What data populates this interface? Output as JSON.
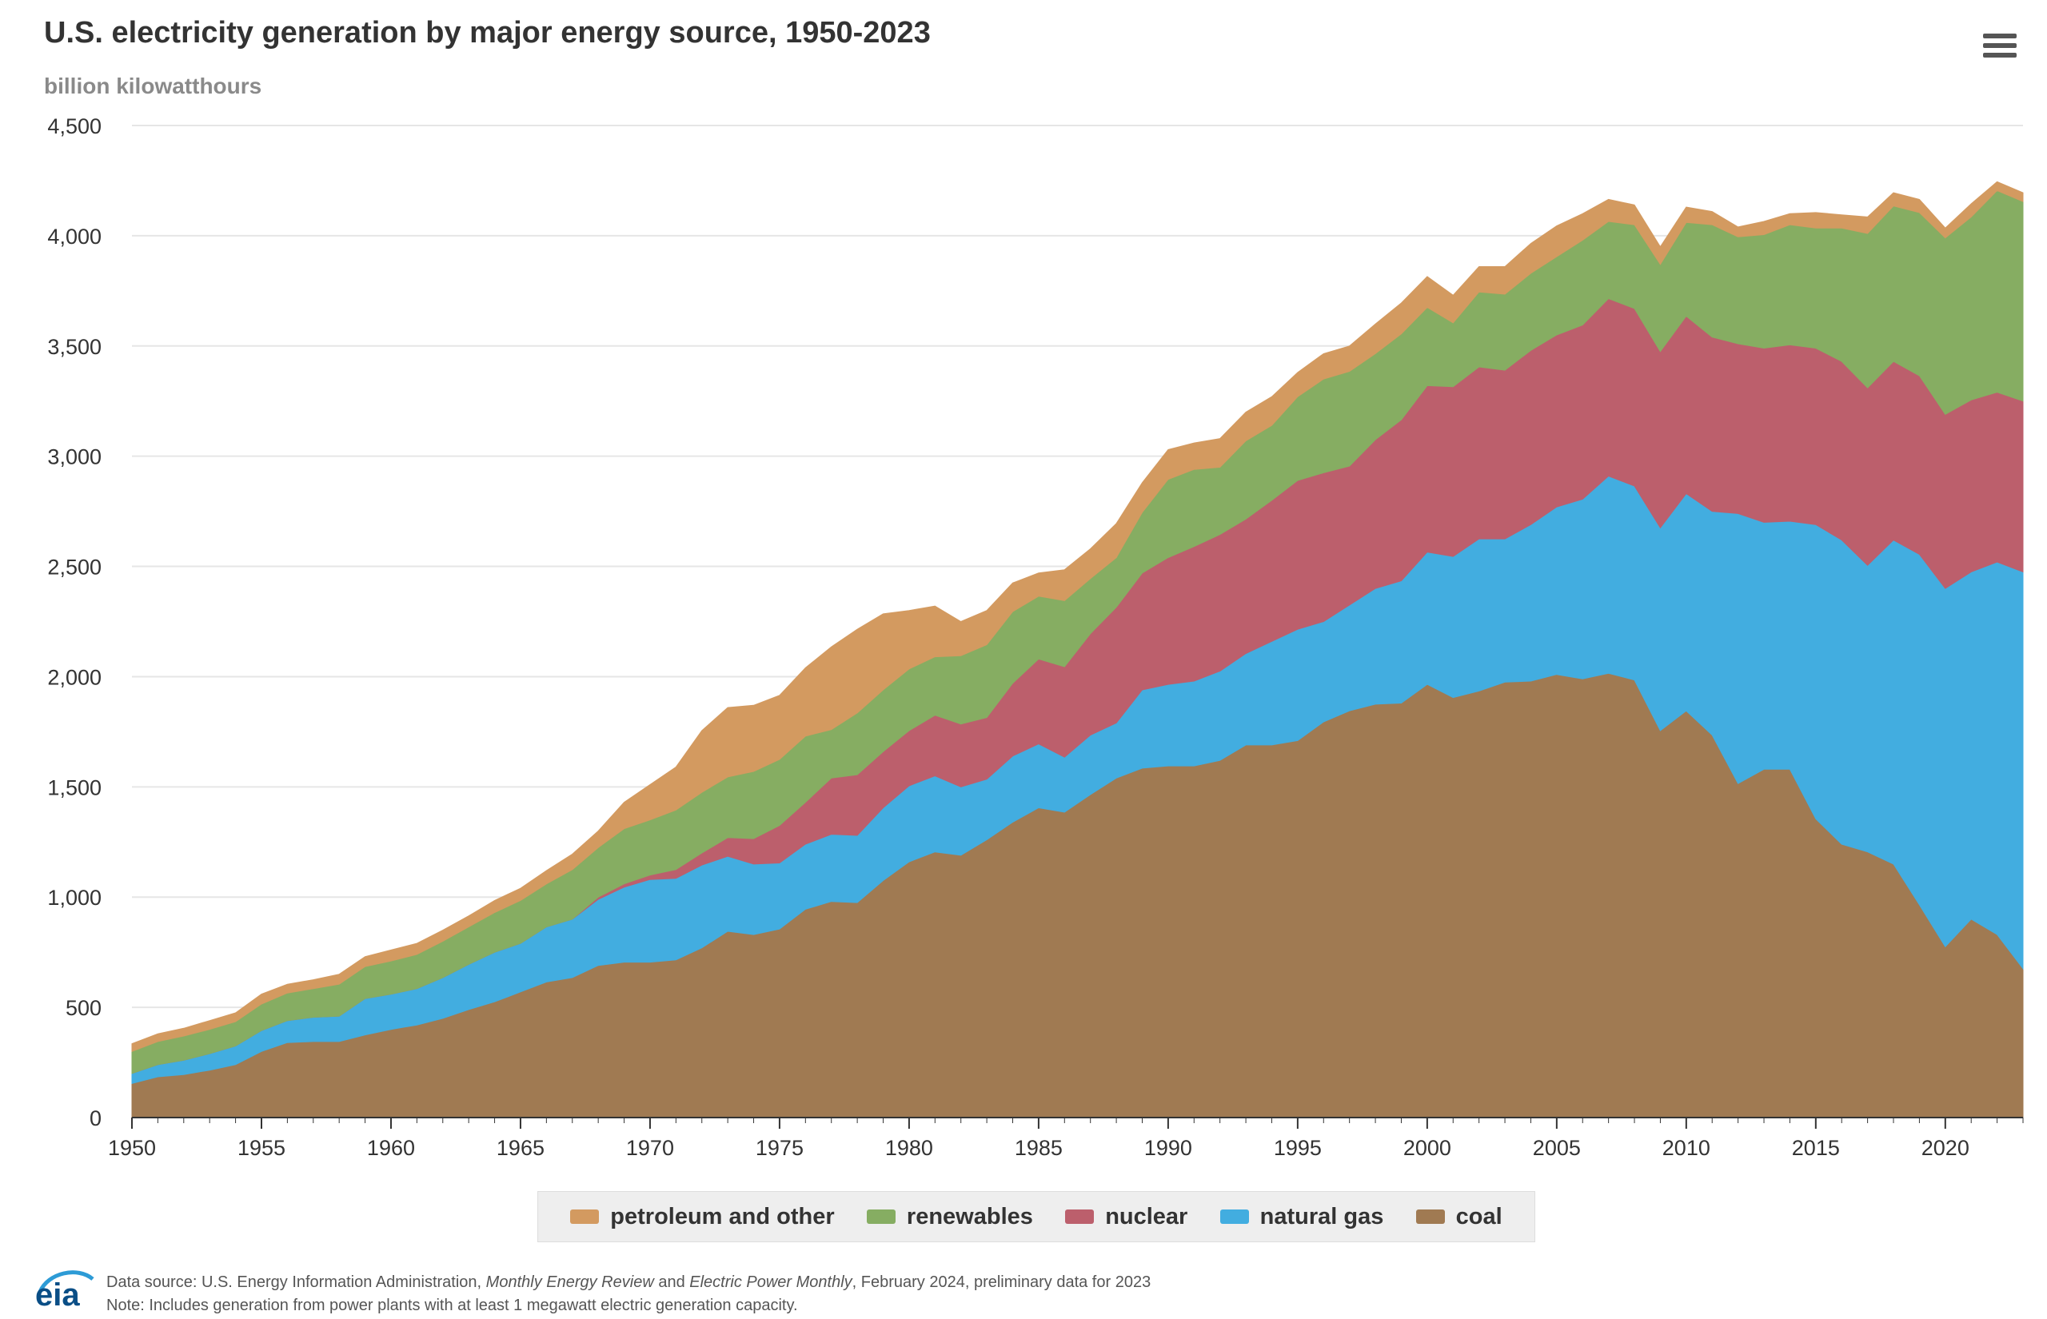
{
  "header": {
    "title": "U.S. electricity generation by major energy source, 1950-2023",
    "subtitle": "billion kilowatthours",
    "menu_icon": "hamburger-menu-icon"
  },
  "footer": {
    "logo_text": "eia",
    "source_prefix": "Data source: U.S. Energy Information Administration, ",
    "source_pub1": "Monthly Energy Review",
    "source_and": " and ",
    "source_pub2": "Electric Power Monthly",
    "source_suffix": ", February 2024, preliminary data for 2023",
    "note": "Note: Includes generation from power plants with at least 1 megawatt electric generation capacity."
  },
  "colors": {
    "coal": "#a07a52",
    "natural_gas": "#42ade0",
    "nuclear": "#bc5f6c",
    "renewables": "#86ad62",
    "petroleum": "#d39a60",
    "grid": "#e6e6e6",
    "axis": "#333333"
  },
  "chart_data": {
    "type": "area",
    "stacked": true,
    "title": "U.S. electricity generation by major energy source, 1950-2023",
    "ylabel": "billion kilowatthours",
    "xlim": [
      1950,
      2023
    ],
    "ylim": [
      0,
      4500
    ],
    "x_ticks": [
      1950,
      1955,
      1960,
      1965,
      1970,
      1975,
      1980,
      1985,
      1990,
      1995,
      2000,
      2005,
      2010,
      2015,
      2020
    ],
    "y_ticks": [
      0,
      500,
      1000,
      1500,
      2000,
      2500,
      3000,
      3500,
      4000,
      4500
    ],
    "y_tick_labels": [
      "0",
      "500",
      "1,000",
      "1,500",
      "2,000",
      "2,500",
      "3,000",
      "3,500",
      "4,000",
      "4,500"
    ],
    "grid": true,
    "legend_position": "bottom-center",
    "x": [
      1950,
      1951,
      1952,
      1953,
      1954,
      1955,
      1956,
      1957,
      1958,
      1959,
      1960,
      1961,
      1962,
      1963,
      1964,
      1965,
      1966,
      1967,
      1968,
      1969,
      1970,
      1971,
      1972,
      1973,
      1974,
      1975,
      1976,
      1977,
      1978,
      1979,
      1980,
      1981,
      1982,
      1983,
      1984,
      1985,
      1986,
      1987,
      1988,
      1989,
      1990,
      1991,
      1992,
      1993,
      1994,
      1995,
      1996,
      1997,
      1998,
      1999,
      2000,
      2001,
      2002,
      2003,
      2004,
      2005,
      2006,
      2007,
      2008,
      2009,
      2010,
      2011,
      2012,
      2013,
      2014,
      2015,
      2016,
      2017,
      2018,
      2019,
      2020,
      2021,
      2022,
      2023
    ],
    "series": [
      {
        "name": "coal",
        "color_key": "coal",
        "values": [
          155,
          185,
          195,
          215,
          240,
          300,
          340,
          345,
          345,
          375,
          400,
          420,
          450,
          490,
          525,
          570,
          615,
          635,
          690,
          705,
          705,
          715,
          770,
          845,
          830,
          855,
          945,
          980,
          975,
          1075,
          1160,
          1205,
          1190,
          1260,
          1340,
          1405,
          1385,
          1465,
          1540,
          1585,
          1595,
          1595,
          1620,
          1690,
          1690,
          1710,
          1795,
          1845,
          1875,
          1880,
          1965,
          1905,
          1935,
          1975,
          1980,
          2010,
          1990,
          2015,
          1985,
          1755,
          1845,
          1735,
          1515,
          1580,
          1580,
          1355,
          1240,
          1205,
          1150,
          965,
          775,
          900,
          830,
          675
        ]
      },
      {
        "name": "natural gas",
        "color_key": "natural_gas",
        "values": [
          45,
          55,
          65,
          75,
          85,
          95,
          100,
          110,
          115,
          165,
          160,
          165,
          185,
          205,
          225,
          220,
          250,
          265,
          300,
          340,
          375,
          370,
          375,
          340,
          320,
          300,
          295,
          305,
          305,
          330,
          345,
          345,
          310,
          275,
          300,
          290,
          250,
          270,
          250,
          355,
          370,
          385,
          405,
          415,
          470,
          505,
          455,
          480,
          525,
          555,
          600,
          640,
          690,
          650,
          710,
          760,
          815,
          895,
          880,
          920,
          985,
          1015,
          1225,
          1120,
          1125,
          1335,
          1380,
          1300,
          1470,
          1590,
          1625,
          1575,
          1690,
          1800
        ]
      },
      {
        "name": "nuclear",
        "color_key": "nuclear",
        "values": [
          0,
          0,
          0,
          0,
          0,
          0,
          0,
          0,
          0,
          0,
          0,
          0,
          0,
          0,
          0,
          0,
          0,
          0,
          10,
          15,
          20,
          40,
          55,
          85,
          115,
          170,
          190,
          255,
          275,
          255,
          250,
          275,
          285,
          280,
          330,
          385,
          410,
          460,
          525,
          530,
          575,
          610,
          620,
          610,
          640,
          675,
          675,
          630,
          675,
          730,
          755,
          770,
          780,
          765,
          790,
          780,
          790,
          805,
          805,
          800,
          805,
          790,
          770,
          790,
          800,
          800,
          810,
          805,
          810,
          810,
          790,
          780,
          770,
          775
        ]
      },
      {
        "name": "renewables",
        "color_key": "renewables",
        "values": [
          100,
          105,
          110,
          110,
          110,
          120,
          125,
          130,
          145,
          145,
          150,
          155,
          165,
          170,
          180,
          195,
          195,
          225,
          225,
          250,
          250,
          270,
          275,
          275,
          305,
          300,
          300,
          220,
          280,
          280,
          280,
          265,
          310,
          330,
          325,
          285,
          300,
          250,
          225,
          275,
          355,
          350,
          305,
          355,
          340,
          380,
          425,
          430,
          390,
          390,
          355,
          290,
          340,
          345,
          350,
          355,
          385,
          350,
          380,
          395,
          425,
          510,
          485,
          515,
          545,
          545,
          605,
          700,
          705,
          740,
          800,
          830,
          915,
          905
        ]
      },
      {
        "name": "petroleum and other",
        "color_key": "petroleum",
        "values": [
          35,
          35,
          35,
          40,
          40,
          45,
          40,
          40,
          45,
          45,
          50,
          50,
          50,
          50,
          55,
          55,
          60,
          70,
          75,
          120,
          160,
          195,
          280,
          315,
          300,
          290,
          310,
          375,
          380,
          345,
          265,
          230,
          155,
          155,
          130,
          105,
          140,
          135,
          155,
          135,
          135,
          120,
          130,
          130,
          130,
          110,
          115,
          115,
          135,
          140,
          140,
          125,
          115,
          125,
          135,
          140,
          120,
          100,
          90,
          80,
          70,
          60,
          45,
          60,
          50,
          70,
          60,
          75,
          60,
          60,
          45,
          60,
          40,
          40
        ]
      }
    ]
  },
  "legend": [
    {
      "label": "petroleum and other",
      "color_key": "petroleum"
    },
    {
      "label": "renewables",
      "color_key": "renewables"
    },
    {
      "label": "nuclear",
      "color_key": "nuclear"
    },
    {
      "label": "natural gas",
      "color_key": "natural_gas"
    },
    {
      "label": "coal",
      "color_key": "coal"
    }
  ]
}
